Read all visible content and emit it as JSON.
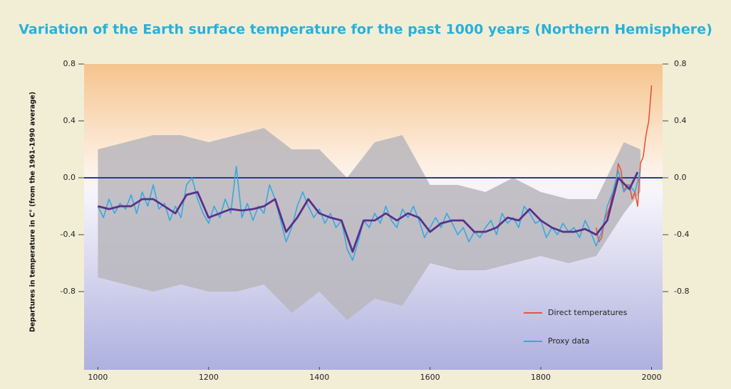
{
  "chart_data": {
    "type": "line",
    "title": "Variation of the Earth surface temperature for the past 1000 years (Northern Hemisphere)",
    "y_label": "Departures in temperature in C° (from the 1961-1990 average)",
    "xlim": [
      975,
      2020
    ],
    "xticks": [
      1000,
      1200,
      1400,
      1600,
      1800,
      2000
    ],
    "ylim": [
      -1.35,
      0.8
    ],
    "yticks": [
      0.8,
      0.4,
      {
        "value": 0,
        "label": "0.0"
      },
      -0.4,
      -0.8
    ],
    "y2lim": [
      -1.35,
      0.8
    ],
    "y2ticks": [
      0.8,
      0.4,
      {
        "value": 0,
        "label": "0.0"
      },
      -0.4,
      -0.8
    ],
    "legend": "lower right",
    "series": [
      {
        "color": "#b8b6bc",
        "x": [
          1000,
          1050,
          1100,
          1150,
          1200,
          1250,
          1300,
          1350,
          1400,
          1450,
          1500,
          1550,
          1600,
          1650,
          1700,
          1750,
          1800,
          1850,
          1900,
          1950,
          1980
        ],
        "upper": [
          0.2,
          0.25,
          0.3,
          0.3,
          0.25,
          0.3,
          0.35,
          0.2,
          0.2,
          0.0,
          0.25,
          0.3,
          -0.05,
          -0.05,
          -0.1,
          0.0,
          -0.1,
          -0.15,
          -0.15,
          0.25,
          0.2
        ],
        "lower": [
          -0.7,
          -0.75,
          -0.8,
          -0.75,
          -0.8,
          -0.8,
          -0.75,
          -0.95,
          -0.8,
          -1.0,
          -0.85,
          -0.9,
          -0.6,
          -0.65,
          -0.65,
          -0.6,
          -0.55,
          -0.6,
          -0.55,
          -0.25,
          -0.1
        ]
      },
      {
        "name": "Direct temperatures",
        "color": "#e8553a",
        "x": [
          1900,
          1905,
          1910,
          1915,
          1920,
          1925,
          1930,
          1935,
          1940,
          1945,
          1950,
          1955,
          1960,
          1965,
          1970,
          1975,
          1980,
          1985,
          1990,
          1995,
          2000
        ],
        "values": [
          -0.35,
          -0.45,
          -0.42,
          -0.3,
          -0.25,
          -0.2,
          -0.1,
          -0.05,
          0.1,
          0.05,
          -0.1,
          -0.05,
          -0.05,
          -0.15,
          -0.1,
          -0.2,
          0.1,
          0.15,
          0.3,
          0.4,
          0.65
        ]
      },
      {
        "name": "Proxy data",
        "color": "#36a9e1",
        "x": [
          1000,
          1010,
          1020,
          1030,
          1040,
          1050,
          1060,
          1070,
          1080,
          1090,
          1100,
          1110,
          1120,
          1130,
          1140,
          1150,
          1160,
          1170,
          1180,
          1190,
          1200,
          1210,
          1220,
          1230,
          1240,
          1250,
          1260,
          1270,
          1280,
          1290,
          1300,
          1310,
          1320,
          1330,
          1340,
          1350,
          1360,
          1370,
          1380,
          1390,
          1400,
          1410,
          1420,
          1430,
          1440,
          1450,
          1460,
          1470,
          1480,
          1490,
          1500,
          1510,
          1520,
          1530,
          1540,
          1550,
          1560,
          1570,
          1580,
          1590,
          1600,
          1610,
          1620,
          1630,
          1640,
          1650,
          1660,
          1670,
          1680,
          1690,
          1700,
          1710,
          1720,
          1730,
          1740,
          1750,
          1760,
          1770,
          1780,
          1790,
          1800,
          1810,
          1820,
          1830,
          1840,
          1850,
          1860,
          1870,
          1880,
          1890,
          1900,
          1910,
          1920,
          1930,
          1940,
          1950,
          1960,
          1970,
          1980
        ],
        "values": [
          -0.2,
          -0.28,
          -0.15,
          -0.25,
          -0.18,
          -0.22,
          -0.12,
          -0.25,
          -0.1,
          -0.2,
          -0.05,
          -0.22,
          -0.18,
          -0.3,
          -0.2,
          -0.28,
          -0.05,
          0.0,
          -0.15,
          -0.25,
          -0.32,
          -0.2,
          -0.28,
          -0.15,
          -0.25,
          0.08,
          -0.28,
          -0.18,
          -0.3,
          -0.2,
          -0.25,
          -0.05,
          -0.15,
          -0.3,
          -0.45,
          -0.35,
          -0.2,
          -0.1,
          -0.2,
          -0.28,
          -0.22,
          -0.32,
          -0.25,
          -0.35,
          -0.3,
          -0.5,
          -0.58,
          -0.45,
          -0.3,
          -0.35,
          -0.25,
          -0.32,
          -0.2,
          -0.3,
          -0.35,
          -0.22,
          -0.28,
          -0.2,
          -0.3,
          -0.42,
          -0.35,
          -0.28,
          -0.35,
          -0.25,
          -0.32,
          -0.4,
          -0.35,
          -0.45,
          -0.38,
          -0.42,
          -0.35,
          -0.3,
          -0.4,
          -0.25,
          -0.32,
          -0.28,
          -0.35,
          -0.2,
          -0.25,
          -0.32,
          -0.3,
          -0.42,
          -0.35,
          -0.4,
          -0.32,
          -0.38,
          -0.35,
          -0.42,
          -0.3,
          -0.38,
          -0.48,
          -0.38,
          -0.2,
          -0.1,
          0.05,
          -0.1,
          -0.05,
          -0.1,
          0.05
        ]
      },
      {
        "color": "#5a2f8a",
        "x": [
          1000,
          1020,
          1040,
          1060,
          1080,
          1100,
          1120,
          1140,
          1160,
          1180,
          1200,
          1220,
          1240,
          1260,
          1280,
          1300,
          1320,
          1340,
          1360,
          1380,
          1400,
          1420,
          1440,
          1460,
          1480,
          1500,
          1520,
          1540,
          1560,
          1580,
          1600,
          1620,
          1640,
          1660,
          1680,
          1700,
          1720,
          1740,
          1760,
          1780,
          1800,
          1820,
          1840,
          1860,
          1880,
          1900,
          1920,
          1940,
          1960,
          1975
        ],
        "values": [
          -0.2,
          -0.22,
          -0.2,
          -0.2,
          -0.15,
          -0.15,
          -0.2,
          -0.25,
          -0.12,
          -0.1,
          -0.28,
          -0.25,
          -0.22,
          -0.23,
          -0.22,
          -0.2,
          -0.15,
          -0.38,
          -0.28,
          -0.15,
          -0.25,
          -0.28,
          -0.3,
          -0.52,
          -0.3,
          -0.3,
          -0.25,
          -0.3,
          -0.25,
          -0.28,
          -0.38,
          -0.32,
          -0.3,
          -0.3,
          -0.38,
          -0.38,
          -0.35,
          -0.28,
          -0.3,
          -0.22,
          -0.3,
          -0.35,
          -0.38,
          -0.38,
          -0.36,
          -0.4,
          -0.3,
          0.0,
          -0.08,
          0.04
        ]
      }
    ]
  }
}
